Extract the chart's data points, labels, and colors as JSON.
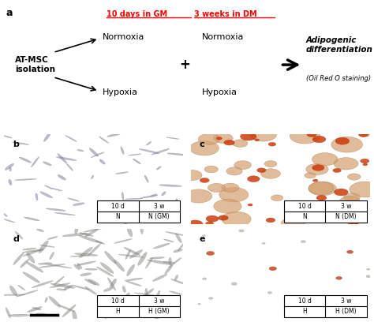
{
  "panel_a": {
    "left_label": "AT-MSC\nisolation",
    "gm_label": "10 days in GM",
    "dm_label": "3 weeks in DM",
    "normoxia": "Normoxia",
    "hypoxia": "Hypoxia",
    "plus": "+",
    "result_bold": "Adipogenic\ndifferentiation",
    "result_italic": "(Oil Red O staining)",
    "gm_color": "#ff0000",
    "dm_color": "#ff0000",
    "arrow_color": "#000000"
  },
  "panels": [
    "b",
    "c",
    "d",
    "e"
  ],
  "inset_tables": {
    "b": {
      "row1": [
        "10 d",
        "3 w"
      ],
      "row2": [
        "N",
        "N (GM)"
      ]
    },
    "c": {
      "row1": [
        "10 d",
        "3 w"
      ],
      "row2": [
        "N",
        "N (DM)"
      ]
    },
    "d": {
      "row1": [
        "10 d",
        "3 w"
      ],
      "row2": [
        "H",
        "H (GM)"
      ]
    },
    "e": {
      "row1": [
        "10 d",
        "3 w"
      ],
      "row2": [
        "H",
        "H (DM)"
      ]
    }
  },
  "panel_bg_colors": {
    "b": "#ddd8d0",
    "c": "#c8a878",
    "d": "#d0ccc0",
    "e": "#e8e4dc"
  },
  "background_color": "#ffffff",
  "fig_width": 4.74,
  "fig_height": 4.08,
  "dpi": 100
}
